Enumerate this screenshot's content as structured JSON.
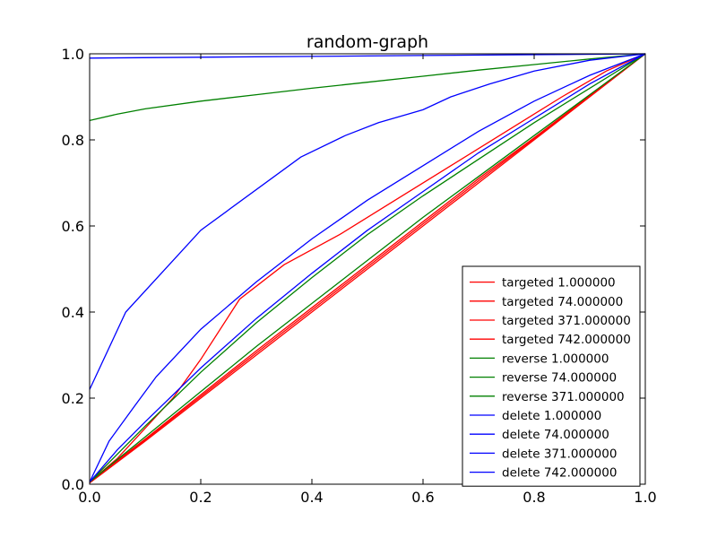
{
  "chart_data": {
    "type": "line",
    "title": "random-graph",
    "xlabel": "",
    "ylabel": "",
    "xlim": [
      0,
      1
    ],
    "ylim": [
      0,
      1
    ],
    "x_ticks": [
      "0.0",
      "0.2",
      "0.4",
      "0.6",
      "0.8",
      "1.0"
    ],
    "y_ticks": [
      "0.0",
      "0.2",
      "0.4",
      "0.6",
      "0.8",
      "1.0"
    ],
    "grid": false,
    "legend_position": "lower-right",
    "series": [
      {
        "name": "targeted 1.000000",
        "color": "#ff0000",
        "points": [
          [
            0,
            0.005
          ],
          [
            0.05,
            0.06
          ],
          [
            0.1,
            0.13
          ],
          [
            0.15,
            0.2
          ],
          [
            0.2,
            0.29
          ],
          [
            0.27,
            0.43
          ],
          [
            0.35,
            0.51
          ],
          [
            0.45,
            0.58
          ],
          [
            0.55,
            0.66
          ],
          [
            0.65,
            0.74
          ],
          [
            0.75,
            0.82
          ],
          [
            0.85,
            0.9
          ],
          [
            0.93,
            0.96
          ],
          [
            1,
            1
          ]
        ]
      },
      {
        "name": "targeted 74.000000",
        "color": "#ff0000",
        "points": [
          [
            0,
            0.005
          ],
          [
            0.1,
            0.105
          ],
          [
            0.2,
            0.208
          ],
          [
            0.3,
            0.31
          ],
          [
            0.4,
            0.41
          ],
          [
            0.5,
            0.51
          ],
          [
            0.6,
            0.61
          ],
          [
            0.7,
            0.71
          ],
          [
            0.8,
            0.805
          ],
          [
            0.9,
            0.903
          ],
          [
            1,
            1
          ]
        ]
      },
      {
        "name": "targeted 371.000000",
        "color": "#ff0000",
        "points": [
          [
            0,
            0.003
          ],
          [
            0.1,
            0.1
          ],
          [
            0.2,
            0.2
          ],
          [
            0.3,
            0.3
          ],
          [
            0.4,
            0.4
          ],
          [
            0.5,
            0.5
          ],
          [
            0.6,
            0.6
          ],
          [
            0.7,
            0.7
          ],
          [
            0.8,
            0.8
          ],
          [
            0.9,
            0.9
          ],
          [
            1,
            1
          ]
        ]
      },
      {
        "name": "targeted 742.000000",
        "color": "#ff0000",
        "points": [
          [
            0,
            0.004
          ],
          [
            0.1,
            0.103
          ],
          [
            0.2,
            0.204
          ],
          [
            0.3,
            0.305
          ],
          [
            0.4,
            0.405
          ],
          [
            0.5,
            0.505
          ],
          [
            0.6,
            0.605
          ],
          [
            0.7,
            0.705
          ],
          [
            0.8,
            0.803
          ],
          [
            0.9,
            0.902
          ],
          [
            1,
            1
          ]
        ]
      },
      {
        "name": "reverse 1.000000",
        "color": "#008000",
        "points": [
          [
            0,
            0.845
          ],
          [
            0.05,
            0.86
          ],
          [
            0.1,
            0.872
          ],
          [
            0.2,
            0.89
          ],
          [
            0.3,
            0.905
          ],
          [
            0.4,
            0.92
          ],
          [
            0.5,
            0.934
          ],
          [
            0.6,
            0.948
          ],
          [
            0.7,
            0.962
          ],
          [
            0.8,
            0.975
          ],
          [
            0.9,
            0.988
          ],
          [
            1,
            1
          ]
        ]
      },
      {
        "name": "reverse 74.000000",
        "color": "#008000",
        "points": [
          [
            0,
            0.005
          ],
          [
            0.1,
            0.135
          ],
          [
            0.2,
            0.26
          ],
          [
            0.3,
            0.375
          ],
          [
            0.4,
            0.48
          ],
          [
            0.5,
            0.58
          ],
          [
            0.6,
            0.67
          ],
          [
            0.7,
            0.755
          ],
          [
            0.8,
            0.84
          ],
          [
            0.9,
            0.92
          ],
          [
            1,
            1
          ]
        ]
      },
      {
        "name": "reverse 371.000000",
        "color": "#008000",
        "points": [
          [
            0,
            0.005
          ],
          [
            0.1,
            0.11
          ],
          [
            0.2,
            0.215
          ],
          [
            0.3,
            0.32
          ],
          [
            0.4,
            0.42
          ],
          [
            0.5,
            0.52
          ],
          [
            0.6,
            0.62
          ],
          [
            0.7,
            0.715
          ],
          [
            0.8,
            0.81
          ],
          [
            0.9,
            0.905
          ],
          [
            1,
            1
          ]
        ]
      },
      {
        "name": "delete 1.000000",
        "color": "#0000ff",
        "points": [
          [
            0,
            0.99
          ],
          [
            0.2,
            0.992
          ],
          [
            0.4,
            0.994
          ],
          [
            0.6,
            0.996
          ],
          [
            0.8,
            0.998
          ],
          [
            1,
            1
          ]
        ]
      },
      {
        "name": "delete 74.000000",
        "color": "#0000ff",
        "points": [
          [
            0,
            0.22
          ],
          [
            0.065,
            0.4
          ],
          [
            0.2,
            0.59
          ],
          [
            0.38,
            0.76
          ],
          [
            0.46,
            0.81
          ],
          [
            0.52,
            0.84
          ],
          [
            0.6,
            0.87
          ],
          [
            0.65,
            0.9
          ],
          [
            0.72,
            0.93
          ],
          [
            0.8,
            0.96
          ],
          [
            0.9,
            0.985
          ],
          [
            1,
            1
          ]
        ]
      },
      {
        "name": "delete 371.000000",
        "color": "#0000ff",
        "points": [
          [
            0,
            0.005
          ],
          [
            0.035,
            0.1
          ],
          [
            0.08,
            0.18
          ],
          [
            0.12,
            0.25
          ],
          [
            0.2,
            0.36
          ],
          [
            0.3,
            0.47
          ],
          [
            0.4,
            0.57
          ],
          [
            0.5,
            0.66
          ],
          [
            0.6,
            0.74
          ],
          [
            0.7,
            0.82
          ],
          [
            0.8,
            0.89
          ],
          [
            0.9,
            0.95
          ],
          [
            1,
            1
          ]
        ]
      },
      {
        "name": "delete 742.000000",
        "color": "#0000ff",
        "points": [
          [
            0,
            0.005
          ],
          [
            0.05,
            0.08
          ],
          [
            0.1,
            0.145
          ],
          [
            0.2,
            0.27
          ],
          [
            0.3,
            0.385
          ],
          [
            0.4,
            0.49
          ],
          [
            0.5,
            0.59
          ],
          [
            0.6,
            0.68
          ],
          [
            0.7,
            0.77
          ],
          [
            0.8,
            0.85
          ],
          [
            0.9,
            0.93
          ],
          [
            1,
            1
          ]
        ]
      }
    ]
  }
}
